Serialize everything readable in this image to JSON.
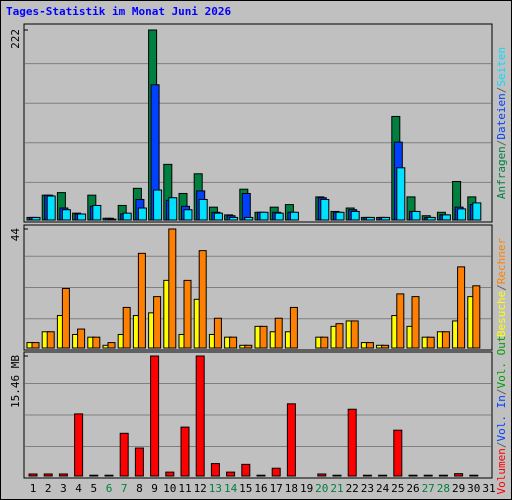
{
  "title": "Tages-Statistik im Monat Juni 2026",
  "legend_separator": "/",
  "categories": [
    "1",
    "2",
    "3",
    "4",
    "5",
    "6",
    "7",
    "8",
    "9",
    "10",
    "11",
    "12",
    "13",
    "14",
    "15",
    "16",
    "17",
    "18",
    "19",
    "20",
    "21",
    "22",
    "23",
    "24",
    "25",
    "26",
    "27",
    "28",
    "29",
    "30",
    "31"
  ],
  "category_colors": [
    "#000000",
    "#000000",
    "#000000",
    "#000000",
    "#000000",
    "#008040",
    "#008040",
    "#000000",
    "#000000",
    "#000000",
    "#000000",
    "#000000",
    "#008040",
    "#008040",
    "#000000",
    "#000000",
    "#000000",
    "#000000",
    "#000000",
    "#008040",
    "#008040",
    "#000000",
    "#000000",
    "#000000",
    "#000000",
    "#000000",
    "#008040",
    "#008040",
    "#000000",
    "#000000",
    "#000000"
  ],
  "chart_data": [
    {
      "type": "bar",
      "ylim": [
        0,
        222
      ],
      "yticks": [
        222
      ],
      "series": [
        {
          "name": "Anfragen",
          "color": "#008040",
          "values": [
            3,
            29,
            32,
            8,
            29,
            2,
            17,
            37,
            222,
            65,
            31,
            54,
            15,
            6,
            36,
            9,
            15,
            18,
            0,
            27,
            10,
            14,
            3,
            3,
            121,
            27,
            5,
            9,
            45,
            27,
            0
          ]
        },
        {
          "name": "Dateien",
          "color": "#0040ff",
          "values": [
            3,
            29,
            14,
            7,
            16,
            2,
            7,
            24,
            158,
            23,
            16,
            34,
            9,
            5,
            31,
            9,
            9,
            9,
            0,
            26,
            9,
            12,
            3,
            3,
            91,
            10,
            3,
            6,
            15,
            18,
            0
          ]
        },
        {
          "name": "Seiten",
          "color": "#00e0ff",
          "values": [
            3,
            28,
            12,
            7,
            17,
            1,
            8,
            14,
            35,
            26,
            12,
            24,
            8,
            3,
            3,
            9,
            8,
            9,
            0,
            24,
            9,
            10,
            3,
            3,
            61,
            10,
            3,
            6,
            13,
            20,
            0
          ]
        }
      ]
    },
    {
      "type": "bar",
      "ylim": [
        0,
        44
      ],
      "yticks": [
        44
      ],
      "series": [
        {
          "name": "Besuche",
          "color": "#ffff00",
          "values": [
            2,
            6,
            12,
            5,
            4,
            1,
            5,
            12,
            13,
            25,
            5,
            18,
            5,
            4,
            1,
            8,
            6,
            6,
            0,
            4,
            8,
            10,
            2,
            1,
            12,
            8,
            4,
            6,
            10,
            19,
            0
          ]
        },
        {
          "name": "Rechner",
          "color": "#ff8000",
          "values": [
            2,
            6,
            22,
            7,
            4,
            2,
            15,
            35,
            19,
            44,
            25,
            36,
            11,
            4,
            1,
            8,
            11,
            15,
            0,
            4,
            9,
            10,
            2,
            1,
            20,
            19,
            4,
            6,
            30,
            23,
            0
          ]
        }
      ]
    },
    {
      "type": "bar",
      "ylim": [
        0,
        15.46
      ],
      "yticks": [
        {
          "value": 15.46,
          "label": "15.46 MB"
        }
      ],
      "series": [
        {
          "name": "Volumen",
          "color": "#ff0000",
          "values": [
            0.26,
            0.26,
            0.26,
            8.0,
            0.1,
            0.1,
            5.5,
            3.6,
            15.46,
            0.5,
            6.3,
            15.46,
            1.6,
            0.5,
            1.5,
            0.1,
            1.0,
            9.3,
            0,
            0.26,
            0.1,
            8.6,
            0.1,
            0.1,
            5.9,
            0.1,
            0.1,
            0.1,
            0.3,
            0.1,
            0
          ]
        },
        {
          "name": "Vol. In",
          "color": "#0040ff"
        },
        {
          "name": "Vol. Out",
          "color": "#00a000"
        }
      ]
    }
  ]
}
